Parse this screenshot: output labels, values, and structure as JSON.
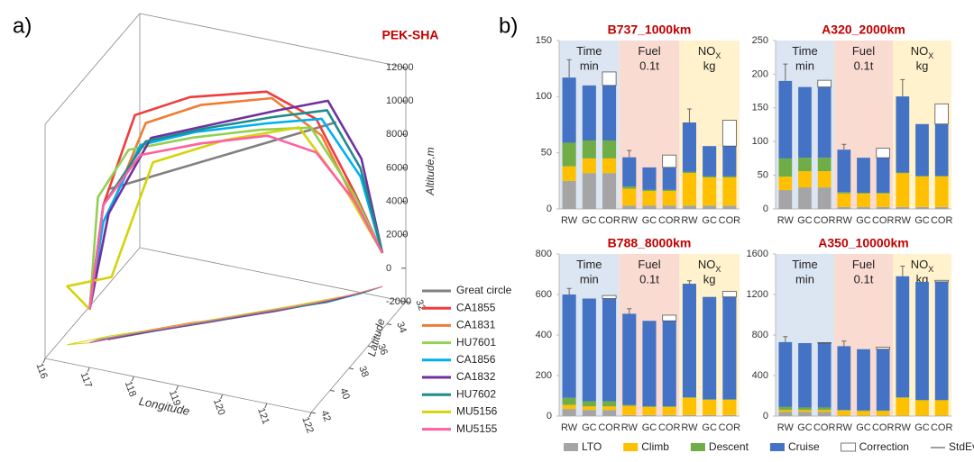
{
  "panel_labels": [
    "a)",
    "b)"
  ],
  "chart_data": [
    {
      "type": "line3d",
      "title": "PEK-SHA",
      "xlabel": "Longitude",
      "ylabel": "Latitude",
      "zlabel": "Altitude,m",
      "xlim": [
        116,
        122
      ],
      "ylim": [
        32,
        42
      ],
      "zlim": [
        -2000,
        12000
      ],
      "xticks": [
        116,
        117,
        118,
        119,
        120,
        121,
        122
      ],
      "yticks": [
        32,
        34,
        36,
        38,
        40,
        42
      ],
      "zticks": [
        -2000,
        0,
        2000,
        4000,
        6000,
        8000,
        10000,
        12000
      ],
      "series": [
        {
          "name": "Great circle",
          "color": "#808080",
          "x": [
            116.9,
            120.6
          ],
          "y": [
            39.6,
            32.8
          ],
          "z": [
            7000,
            8500
          ]
        },
        {
          "name": "CA1855",
          "color": "#f03c3c",
          "x": [
            116.6,
            116.8,
            117.3,
            118.2,
            119.5,
            120.3,
            120.9,
            121.3
          ],
          "y": [
            40.1,
            39.6,
            38.6,
            37.0,
            35.0,
            33.5,
            32.2,
            31.2
          ],
          "z": [
            0,
            6000,
            11000,
            11500,
            11200,
            9000,
            4000,
            0
          ]
        },
        {
          "name": "CA1831",
          "color": "#ed7d31",
          "x": [
            116.6,
            116.9,
            117.5,
            118.4,
            119.6,
            120.4,
            120.9,
            121.3
          ],
          "y": [
            40.1,
            39.5,
            38.4,
            36.8,
            34.9,
            33.4,
            32.2,
            31.2
          ],
          "z": [
            0,
            5500,
            10500,
            11000,
            10800,
            8000,
            3500,
            0
          ]
        },
        {
          "name": "HU7601",
          "color": "#92d050",
          "x": [
            116.6,
            116.7,
            117.2,
            118.3,
            119.4,
            120.2,
            120.9,
            121.3
          ],
          "y": [
            40.1,
            39.7,
            38.8,
            37.1,
            35.2,
            33.6,
            32.3,
            31.2
          ],
          "z": [
            0,
            6500,
            9000,
            9200,
            9000,
            8500,
            4000,
            0
          ]
        },
        {
          "name": "CA1856",
          "color": "#00b0f0",
          "x": [
            116.6,
            116.8,
            117.4,
            118.3,
            119.5,
            120.4,
            121.0,
            121.3
          ],
          "y": [
            40.1,
            39.6,
            38.5,
            36.9,
            35.0,
            33.4,
            32.1,
            31.2
          ],
          "z": [
            0,
            5000,
            9200,
            9400,
            9300,
            9000,
            5000,
            0
          ]
        },
        {
          "name": "CA1832",
          "color": "#7030a0",
          "x": [
            116.6,
            116.9,
            117.6,
            118.6,
            119.7,
            120.5,
            121.0,
            121.3
          ],
          "y": [
            40.1,
            39.5,
            38.3,
            36.6,
            34.7,
            33.2,
            32.0,
            31.2
          ],
          "z": [
            0,
            5500,
            9600,
            9800,
            10000,
            10000,
            6000,
            0
          ]
        },
        {
          "name": "HU7602",
          "color": "#1e8c8c",
          "x": [
            116.6,
            116.8,
            117.5,
            118.5,
            119.6,
            120.5,
            121.0,
            121.3
          ],
          "y": [
            40.1,
            39.6,
            38.4,
            36.7,
            34.8,
            33.3,
            32.1,
            31.2
          ],
          "z": [
            0,
            6000,
            9400,
            9600,
            9600,
            9500,
            5500,
            0
          ]
        },
        {
          "name": "MU5156",
          "color": "#d4d40a",
          "x": [
            116.6,
            116.2,
            116.9,
            117.6,
            118.8,
            120.0,
            120.8,
            121.3
          ],
          "y": [
            40.1,
            40.6,
            39.2,
            38.1,
            36.0,
            33.9,
            32.4,
            31.2
          ],
          "z": [
            0,
            1500,
            1500,
            8000,
            8600,
            8600,
            4000,
            0
          ]
        },
        {
          "name": "MU5155",
          "color": "#ff5fa2",
          "x": [
            116.6,
            116.8,
            117.4,
            118.4,
            119.5,
            120.3,
            120.9,
            121.3
          ],
          "y": [
            40.1,
            39.6,
            38.5,
            36.8,
            34.9,
            33.5,
            32.2,
            31.2
          ],
          "z": [
            0,
            6000,
            8600,
            8700,
            8500,
            7000,
            3500,
            0
          ]
        }
      ]
    },
    {
      "type": "stacked_bar",
      "title": "B737_1000km",
      "categories": [
        "RW",
        "GC",
        "COR",
        "RW",
        "GC",
        "COR",
        "RW",
        "GC",
        "COR"
      ],
      "groups": [
        {
          "label": "Time",
          "unit": "min",
          "color": "#dce6f2"
        },
        {
          "label": "Fuel",
          "unit": "0.1t",
          "color": "#fadbd2"
        },
        {
          "label": "NO",
          "sub": "X",
          "unit": "kg",
          "color": "#fff2cc"
        }
      ],
      "ylim": [
        0,
        150
      ],
      "yticks": [
        0,
        50,
        100,
        150
      ],
      "error_name": "StdEv",
      "series": [
        {
          "name": "LTO",
          "color": "#a5a5a5",
          "values": [
            25,
            32,
            32,
            3,
            3,
            3,
            3,
            3,
            3
          ]
        },
        {
          "name": "Climb",
          "color": "#ffc000",
          "values": [
            13,
            13,
            13,
            15,
            13,
            13,
            29,
            25,
            25
          ]
        },
        {
          "name": "Descent",
          "color": "#70ad47",
          "values": [
            21,
            16,
            16,
            2,
            1,
            1,
            1,
            1,
            1
          ]
        },
        {
          "name": "Cruise",
          "color": "#4472c4",
          "values": [
            58,
            49,
            49,
            26,
            20,
            20,
            44,
            27,
            27
          ]
        },
        {
          "name": "Correction",
          "color": "#ffffff",
          "values": [
            null,
            null,
            12,
            null,
            null,
            11,
            null,
            null,
            23
          ]
        }
      ],
      "errors": [
        16,
        null,
        null,
        6,
        null,
        null,
        12,
        null,
        null
      ]
    },
    {
      "type": "stacked_bar",
      "title": "A320_2000km",
      "categories": [
        "RW",
        "GC",
        "COR",
        "RW",
        "GC",
        "COR",
        "RW",
        "GC",
        "COR"
      ],
      "groups": [
        {
          "label": "Time",
          "unit": "min",
          "color": "#dce6f2"
        },
        {
          "label": "Fuel",
          "unit": "0.1t",
          "color": "#fadbd2"
        },
        {
          "label": "NO",
          "sub": "X",
          "unit": "kg",
          "color": "#fff2cc"
        }
      ],
      "ylim": [
        0,
        250
      ],
      "yticks": [
        0,
        50,
        100,
        150,
        200,
        250
      ],
      "series": [
        {
          "color": "#a5a5a5",
          "values": [
            28,
            32,
            32,
            3,
            3,
            3,
            3,
            3,
            3
          ]
        },
        {
          "color": "#ffc000",
          "values": [
            20,
            24,
            24,
            20,
            20,
            20,
            50,
            45,
            45
          ]
        },
        {
          "color": "#70ad47",
          "values": [
            27,
            20,
            20,
            2,
            1,
            1,
            1,
            1,
            1
          ]
        },
        {
          "color": "#4472c4",
          "values": [
            115,
            105,
            105,
            63,
            52,
            52,
            113,
            77,
            77
          ]
        },
        {
          "color": "#ffffff",
          "values": [
            null,
            null,
            10,
            null,
            null,
            14,
            null,
            null,
            30
          ]
        }
      ],
      "errors": [
        25,
        null,
        null,
        8,
        null,
        null,
        25,
        null,
        null
      ]
    },
    {
      "type": "stacked_bar",
      "title": "B788_8000km",
      "categories": [
        "RW",
        "GC",
        "COR",
        "RW",
        "GC",
        "COR",
        "RW",
        "GC",
        "COR"
      ],
      "groups": [
        {
          "label": "Time",
          "unit": "min",
          "color": "#dce6f2"
        },
        {
          "label": "Fuel",
          "unit": "0.1t",
          "color": "#fadbd2"
        },
        {
          "label": "NO",
          "sub": "X",
          "unit": "kg",
          "color": "#fff2cc"
        }
      ],
      "ylim": [
        0,
        800
      ],
      "yticks": [
        0,
        200,
        400,
        600,
        800
      ],
      "series": [
        {
          "color": "#a5a5a5",
          "values": [
            35,
            30,
            30,
            5,
            5,
            5,
            5,
            5,
            5
          ]
        },
        {
          "color": "#ffc000",
          "values": [
            20,
            18,
            18,
            45,
            40,
            40,
            85,
            75,
            75
          ]
        },
        {
          "color": "#70ad47",
          "values": [
            35,
            25,
            25,
            5,
            3,
            3,
            3,
            3,
            3
          ]
        },
        {
          "color": "#4472c4",
          "values": [
            510,
            507,
            507,
            450,
            422,
            422,
            560,
            505,
            505
          ]
        },
        {
          "color": "#ffffff",
          "values": [
            null,
            null,
            15,
            null,
            null,
            28,
            null,
            null,
            27
          ]
        }
      ],
      "errors": [
        30,
        null,
        null,
        25,
        null,
        null,
        15,
        null,
        null
      ]
    },
    {
      "type": "stacked_bar",
      "title": "A350_10000km",
      "categories": [
        "RW",
        "GC",
        "COR",
        "RW",
        "GC",
        "COR",
        "RW",
        "GC",
        "COR"
      ],
      "groups": [
        {
          "label": "Time",
          "unit": "min",
          "color": "#dce6f2"
        },
        {
          "label": "Fuel",
          "unit": "0.1t",
          "color": "#fadbd2"
        },
        {
          "label": "NO",
          "sub": "X",
          "unit": "kg",
          "color": "#fff2cc"
        }
      ],
      "ylim": [
        0,
        1600
      ],
      "yticks": [
        0,
        400,
        800,
        1200,
        1600
      ],
      "series": [
        {
          "color": "#a5a5a5",
          "values": [
            40,
            40,
            40,
            5,
            5,
            5,
            5,
            5,
            5
          ]
        },
        {
          "color": "#ffc000",
          "values": [
            20,
            20,
            20,
            50,
            45,
            45,
            175,
            150,
            150
          ]
        },
        {
          "color": "#70ad47",
          "values": [
            30,
            25,
            25,
            5,
            5,
            5,
            5,
            5,
            5
          ]
        },
        {
          "color": "#4472c4",
          "values": [
            640,
            635,
            635,
            630,
            605,
            605,
            1195,
            1165,
            1165
          ]
        },
        {
          "color": "#ffffff",
          "values": [
            null,
            null,
            5,
            null,
            null,
            20,
            null,
            null,
            15
          ]
        }
      ],
      "errors": [
        55,
        null,
        null,
        50,
        null,
        null,
        100,
        null,
        null
      ]
    }
  ]
}
